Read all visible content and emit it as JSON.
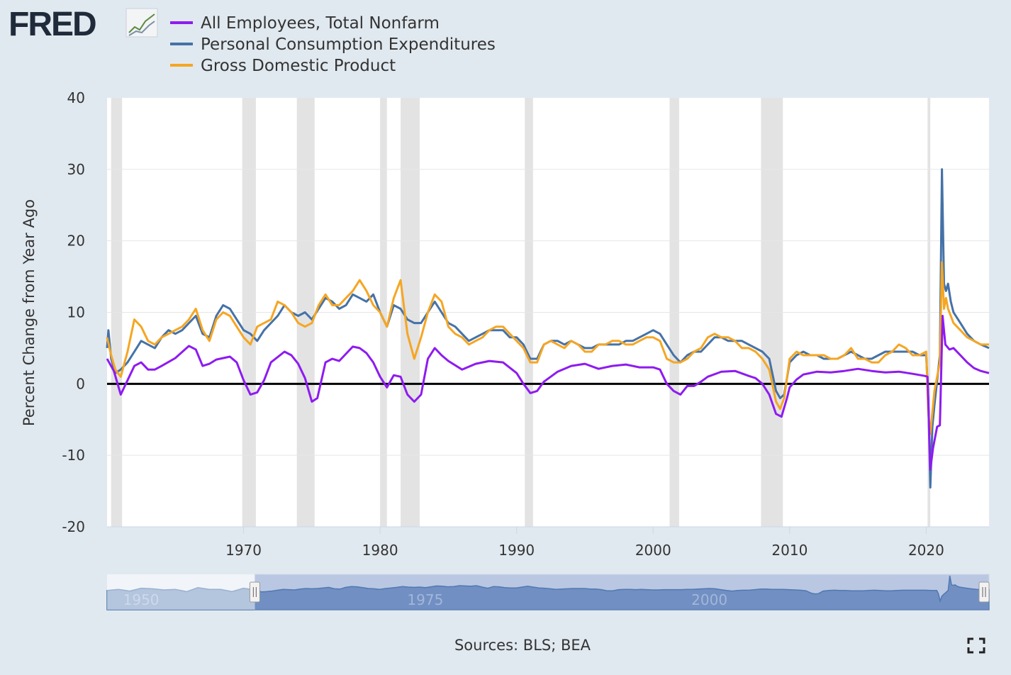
{
  "brand": {
    "logo_text": "FRED"
  },
  "colors": {
    "employees": "#8e1bf0",
    "pce": "#4572a7",
    "gdp": "#f5a623",
    "background": "#e1e9f0",
    "plot_bg": "#ffffff",
    "recession": "#e3e3e3",
    "zero_line": "#000000"
  },
  "source": "Sources: BLS; BEA",
  "icons": {
    "fullscreen": "fullscreen-icon",
    "logo_chart": "fred-logo-chart-icon"
  },
  "chart_data": {
    "type": "line",
    "title": "",
    "ylabel": "Percent Change from Year Ago",
    "xlabel": "",
    "xlim": [
      1960.0,
      2024.6
    ],
    "ylim": [
      -20,
      40
    ],
    "yticks": [
      -20,
      -10,
      0,
      10,
      20,
      30,
      40
    ],
    "ytick_labels": [
      "-20",
      "-10",
      "0",
      "10",
      "20",
      "30",
      "40"
    ],
    "xticks": [
      1970,
      1980,
      1990,
      2000,
      2010,
      2020
    ],
    "xtick_labels": [
      "1970",
      "1980",
      "1990",
      "2000",
      "2010",
      "2020"
    ],
    "zero_line": 0,
    "legend_position": "top-left",
    "recessions": [
      [
        1960.3,
        1961.1
      ],
      [
        1969.9,
        1970.9
      ],
      [
        1973.9,
        1975.2
      ],
      [
        1980.0,
        1980.5
      ],
      [
        1981.5,
        1982.9
      ],
      [
        1990.6,
        1991.2
      ],
      [
        2001.2,
        2001.9
      ],
      [
        2007.9,
        2009.5
      ],
      [
        2020.1,
        2020.3
      ]
    ],
    "series": [
      {
        "name": "All Employees, Total Nonfarm",
        "color": "#8e1bf0",
        "x": [
          1960.0,
          1960.5,
          1961.0,
          1961.5,
          1962.0,
          1962.5,
          1963.0,
          1963.5,
          1964.0,
          1965.0,
          1966.0,
          1966.5,
          1967.0,
          1967.5,
          1968.0,
          1969.0,
          1969.5,
          1970.0,
          1970.5,
          1971.0,
          1971.5,
          1972.0,
          1973.0,
          1973.5,
          1974.0,
          1974.5,
          1975.0,
          1975.4,
          1976.0,
          1976.5,
          1977.0,
          1978.0,
          1978.5,
          1979.0,
          1979.5,
          1980.0,
          1980.5,
          1981.0,
          1981.5,
          1982.0,
          1982.5,
          1983.0,
          1983.5,
          1984.0,
          1984.5,
          1985.0,
          1986.0,
          1987.0,
          1988.0,
          1989.0,
          1990.0,
          1990.5,
          1991.0,
          1991.5,
          1992.0,
          1993.0,
          1994.0,
          1995.0,
          1996.0,
          1997.0,
          1998.0,
          1999.0,
          2000.0,
          2000.5,
          2001.0,
          2001.5,
          2002.0,
          2002.5,
          2003.0,
          2003.5,
          2004.0,
          2005.0,
          2006.0,
          2007.0,
          2007.5,
          2008.0,
          2008.5,
          2009.0,
          2009.4,
          2009.8,
          2010.0,
          2010.5,
          2011.0,
          2012.0,
          2013.0,
          2014.0,
          2015.0,
          2016.0,
          2017.0,
          2018.0,
          2019.0,
          2019.9,
          2020.1,
          2020.3,
          2020.5,
          2020.8,
          2021.0,
          2021.2,
          2021.4,
          2021.7,
          2022.0,
          2022.5,
          2023.0,
          2023.5,
          2024.0,
          2024.6
        ],
        "y": [
          3.5,
          1.8,
          -1.5,
          0.5,
          2.5,
          3.0,
          2.0,
          2.0,
          2.5,
          3.6,
          5.3,
          4.8,
          2.5,
          2.8,
          3.4,
          3.8,
          3.0,
          0.5,
          -1.5,
          -1.2,
          0.5,
          3.0,
          4.5,
          4.0,
          2.8,
          0.8,
          -2.5,
          -2.0,
          3.0,
          3.5,
          3.2,
          5.2,
          5.0,
          4.3,
          3.0,
          1.0,
          -0.5,
          1.2,
          1.0,
          -1.5,
          -2.5,
          -1.5,
          3.5,
          5.0,
          4.0,
          3.2,
          2.0,
          2.8,
          3.2,
          3.0,
          1.5,
          0.0,
          -1.3,
          -1.0,
          0.3,
          1.7,
          2.5,
          2.8,
          2.1,
          2.5,
          2.7,
          2.3,
          2.3,
          2.0,
          0.0,
          -1.0,
          -1.5,
          -0.3,
          -0.3,
          0.3,
          1.0,
          1.7,
          1.8,
          1.1,
          0.8,
          0.0,
          -1.5,
          -4.2,
          -4.6,
          -2.0,
          -0.5,
          0.6,
          1.3,
          1.7,
          1.6,
          1.8,
          2.1,
          1.8,
          1.6,
          1.7,
          1.4,
          1.1,
          1.0,
          -12.0,
          -9.0,
          -6.0,
          -5.8,
          9.5,
          5.5,
          4.8,
          5.0,
          4.0,
          3.0,
          2.2,
          1.8,
          1.5
        ]
      },
      {
        "name": "Personal Consumption Expenditures",
        "color": "#4572a7",
        "x": [
          1960.0,
          1960.1,
          1960.3,
          1960.6,
          1961.0,
          1961.5,
          1962.0,
          1962.5,
          1963.0,
          1963.5,
          1964.0,
          1964.5,
          1965.0,
          1965.5,
          1966.0,
          1966.5,
          1967.0,
          1967.5,
          1968.0,
          1968.5,
          1969.0,
          1969.5,
          1970.0,
          1970.5,
          1971.0,
          1971.5,
          1972.0,
          1972.5,
          1973.0,
          1973.5,
          1974.0,
          1974.5,
          1975.0,
          1975.5,
          1976.0,
          1976.5,
          1977.0,
          1977.5,
          1978.0,
          1978.5,
          1979.0,
          1979.5,
          1980.0,
          1980.5,
          1981.0,
          1981.5,
          1982.0,
          1982.5,
          1983.0,
          1983.5,
          1984.0,
          1984.5,
          1985.0,
          1985.5,
          1986.0,
          1986.5,
          1987.0,
          1987.5,
          1988.0,
          1988.5,
          1989.0,
          1989.5,
          1990.0,
          1990.5,
          1991.0,
          1991.5,
          1992.0,
          1992.5,
          1993.0,
          1993.5,
          1994.0,
          1994.5,
          1995.0,
          1995.5,
          1996.0,
          1996.5,
          1997.0,
          1997.5,
          1998.0,
          1998.5,
          1999.0,
          1999.5,
          2000.0,
          2000.5,
          2001.0,
          2001.5,
          2002.0,
          2002.5,
          2003.0,
          2003.5,
          2004.0,
          2004.5,
          2005.0,
          2005.5,
          2006.0,
          2006.5,
          2007.0,
          2007.5,
          2008.0,
          2008.5,
          2009.0,
          2009.3,
          2009.6,
          2010.0,
          2010.5,
          2011.0,
          2011.5,
          2012.0,
          2012.5,
          2013.0,
          2013.5,
          2014.0,
          2014.5,
          2015.0,
          2015.5,
          2016.0,
          2016.5,
          2017.0,
          2017.5,
          2018.0,
          2018.5,
          2019.0,
          2019.5,
          2020.0,
          2020.15,
          2020.3,
          2020.45,
          2020.6,
          2021.0,
          2021.15,
          2021.3,
          2021.45,
          2021.6,
          2021.8,
          2022.0,
          2022.5,
          2023.0,
          2023.5,
          2024.0,
          2024.6
        ],
        "y": [
          5.0,
          7.5,
          3.5,
          1.5,
          2.0,
          3.0,
          4.5,
          6.0,
          5.5,
          5.0,
          6.5,
          7.5,
          7.0,
          7.5,
          8.5,
          9.5,
          7.0,
          6.5,
          9.5,
          11.0,
          10.5,
          9.0,
          7.5,
          7.0,
          6.0,
          7.5,
          8.5,
          9.5,
          11.0,
          10.0,
          9.5,
          10.0,
          9.0,
          10.5,
          12.0,
          11.5,
          10.5,
          11.0,
          12.5,
          12.0,
          11.5,
          12.5,
          10.0,
          8.0,
          11.0,
          10.5,
          9.0,
          8.5,
          8.5,
          10.0,
          11.5,
          10.0,
          8.5,
          8.0,
          7.0,
          6.0,
          6.5,
          7.0,
          7.5,
          7.5,
          7.5,
          6.5,
          6.5,
          5.5,
          3.5,
          3.5,
          5.5,
          6.0,
          6.0,
          5.5,
          6.0,
          5.5,
          5.0,
          5.0,
          5.5,
          5.5,
          5.5,
          5.5,
          6.0,
          6.0,
          6.5,
          7.0,
          7.5,
          7.0,
          5.5,
          4.0,
          3.0,
          4.0,
          4.5,
          4.5,
          5.5,
          6.5,
          6.5,
          6.0,
          6.0,
          6.0,
          5.5,
          5.0,
          4.5,
          3.5,
          -1.0,
          -2.0,
          -1.5,
          3.0,
          4.0,
          4.5,
          4.0,
          4.0,
          3.5,
          3.5,
          3.5,
          4.0,
          4.5,
          4.0,
          3.5,
          3.5,
          4.0,
          4.5,
          4.5,
          4.5,
          4.5,
          4.5,
          4.0,
          4.0,
          -2.0,
          -14.5,
          -6.0,
          -3.0,
          4.0,
          30.0,
          14.0,
          13.0,
          14.0,
          11.5,
          10.0,
          8.5,
          7.0,
          6.0,
          5.5,
          5.0
        ]
      },
      {
        "name": "Gross Domestic Product",
        "color": "#f5a623",
        "x": [
          1960.0,
          1960.3,
          1960.6,
          1961.0,
          1961.5,
          1962.0,
          1962.5,
          1963.0,
          1963.5,
          1964.0,
          1964.5,
          1965.0,
          1965.5,
          1966.0,
          1966.5,
          1967.0,
          1967.5,
          1968.0,
          1968.5,
          1969.0,
          1969.5,
          1970.0,
          1970.5,
          1971.0,
          1971.5,
          1972.0,
          1972.5,
          1973.0,
          1973.5,
          1974.0,
          1974.5,
          1975.0,
          1975.5,
          1976.0,
          1976.5,
          1977.0,
          1977.5,
          1978.0,
          1978.5,
          1979.0,
          1979.5,
          1980.0,
          1980.5,
          1981.0,
          1981.5,
          1982.0,
          1982.5,
          1983.0,
          1983.5,
          1984.0,
          1984.5,
          1985.0,
          1985.5,
          1986.0,
          1986.5,
          1987.0,
          1987.5,
          1988.0,
          1988.5,
          1989.0,
          1989.5,
          1990.0,
          1990.5,
          1991.0,
          1991.5,
          1992.0,
          1992.5,
          1993.0,
          1993.5,
          1994.0,
          1994.5,
          1995.0,
          1995.5,
          1996.0,
          1996.5,
          1997.0,
          1997.5,
          1998.0,
          1998.5,
          1999.0,
          1999.5,
          2000.0,
          2000.5,
          2001.0,
          2001.5,
          2002.0,
          2002.5,
          2003.0,
          2003.5,
          2004.0,
          2004.5,
          2005.0,
          2005.5,
          2006.0,
          2006.5,
          2007.0,
          2007.5,
          2008.0,
          2008.5,
          2009.0,
          2009.3,
          2009.6,
          2010.0,
          2010.5,
          2011.0,
          2011.5,
          2012.0,
          2012.5,
          2013.0,
          2013.5,
          2014.0,
          2014.5,
          2015.0,
          2015.5,
          2016.0,
          2016.5,
          2017.0,
          2017.5,
          2018.0,
          2018.5,
          2019.0,
          2019.5,
          2020.0,
          2020.15,
          2020.3,
          2020.45,
          2020.6,
          2021.0,
          2021.15,
          2021.3,
          2021.45,
          2021.6,
          2021.8,
          2022.0,
          2022.5,
          2023.0,
          2023.5,
          2024.0,
          2024.6
        ],
        "y": [
          6.5,
          4.0,
          2.0,
          1.0,
          4.5,
          9.0,
          8.0,
          6.0,
          5.5,
          6.5,
          7.0,
          7.5,
          8.0,
          9.0,
          10.5,
          7.5,
          6.0,
          9.0,
          10.0,
          9.5,
          8.0,
          6.5,
          5.5,
          8.0,
          8.5,
          9.0,
          11.5,
          11.0,
          10.0,
          8.5,
          8.0,
          8.5,
          11.0,
          12.5,
          11.0,
          11.0,
          12.0,
          13.0,
          14.5,
          13.0,
          11.0,
          10.0,
          8.0,
          12.0,
          14.5,
          7.0,
          3.5,
          6.5,
          10.0,
          12.5,
          11.5,
          8.0,
          7.0,
          6.5,
          5.5,
          6.0,
          6.5,
          7.5,
          8.0,
          8.0,
          7.0,
          6.0,
          5.0,
          3.0,
          3.0,
          5.5,
          6.0,
          5.5,
          5.0,
          6.0,
          5.5,
          4.5,
          4.5,
          5.5,
          5.5,
          6.0,
          6.0,
          5.5,
          5.5,
          6.0,
          6.5,
          6.5,
          6.0,
          3.5,
          3.0,
          3.0,
          3.5,
          4.5,
          5.0,
          6.5,
          7.0,
          6.5,
          6.5,
          6.0,
          5.0,
          5.0,
          4.5,
          3.5,
          2.0,
          -2.5,
          -3.5,
          -2.0,
          3.5,
          4.5,
          4.0,
          4.0,
          4.0,
          4.0,
          3.5,
          3.5,
          4.0,
          5.0,
          3.5,
          3.5,
          3.0,
          3.0,
          4.0,
          4.5,
          5.5,
          5.0,
          4.0,
          4.0,
          4.5,
          -4.0,
          -7.0,
          -4.0,
          -1.0,
          3.0,
          17.0,
          10.5,
          12.0,
          10.5,
          9.5,
          8.5,
          7.5,
          6.5,
          6.0,
          5.5,
          5.5
        ]
      }
    ],
    "navigator": {
      "range": [
        1947.0,
        2024.6
      ],
      "selected": [
        1960.0,
        2024.6
      ],
      "tick_labels": [
        "1950",
        "1975",
        "2000"
      ],
      "tick_values": [
        1950,
        1975,
        2000
      ]
    }
  }
}
